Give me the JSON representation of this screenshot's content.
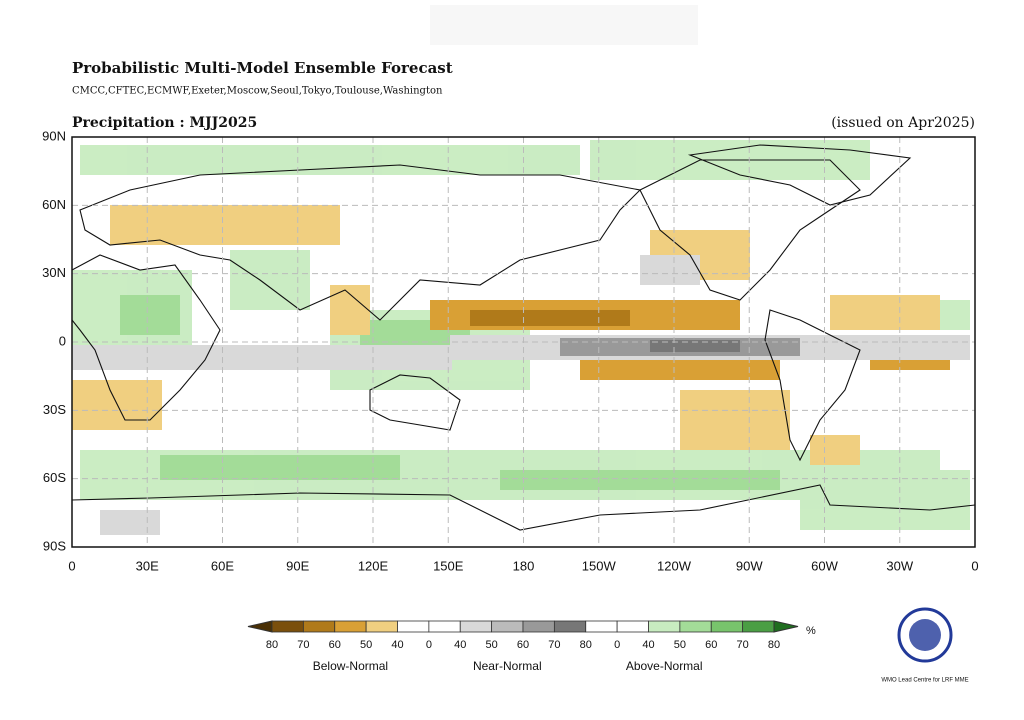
{
  "header": {
    "title": "Probabilistic Multi-Model Ensemble Forecast",
    "models": "CMCC,CFTEC,ECMWF,Exeter,Moscow,Seoul,Tokyo,Toulouse,Washington"
  },
  "map": {
    "variable": "Precipitation : MJJ2025",
    "issued": "(issued on Apr2025)",
    "lat_labels": [
      "90N",
      "60N",
      "30N",
      "0",
      "30S",
      "60S",
      "90S"
    ],
    "lon_labels": [
      "0",
      "30E",
      "60E",
      "90E",
      "120E",
      "150E",
      "180",
      "150W",
      "120W",
      "90W",
      "60W",
      "30W",
      "0"
    ]
  },
  "legend": {
    "ticks": [
      "80",
      "70",
      "60",
      "50",
      "40",
      "0",
      "40",
      "50",
      "60",
      "70",
      "80",
      "0",
      "40",
      "50",
      "60",
      "70",
      "80"
    ],
    "colors": [
      "#4a3005",
      "#7a4f0c",
      "#b07a1a",
      "#d9a035",
      "#f0cf80",
      "#ffffff",
      "#ffffff",
      "#d9d9d9",
      "#bbbbbb",
      "#999999",
      "#777777",
      "#ffffff",
      "#ffffff",
      "#c8ecc0",
      "#a3dc98",
      "#78c46c",
      "#4a9e44",
      "#1f6e1f"
    ],
    "unit": "%",
    "categories": [
      "Below-Normal",
      "Near-Normal",
      "Above-Normal"
    ]
  },
  "logo": {
    "text": "WMO Lead Centre for LRF MME"
  }
}
